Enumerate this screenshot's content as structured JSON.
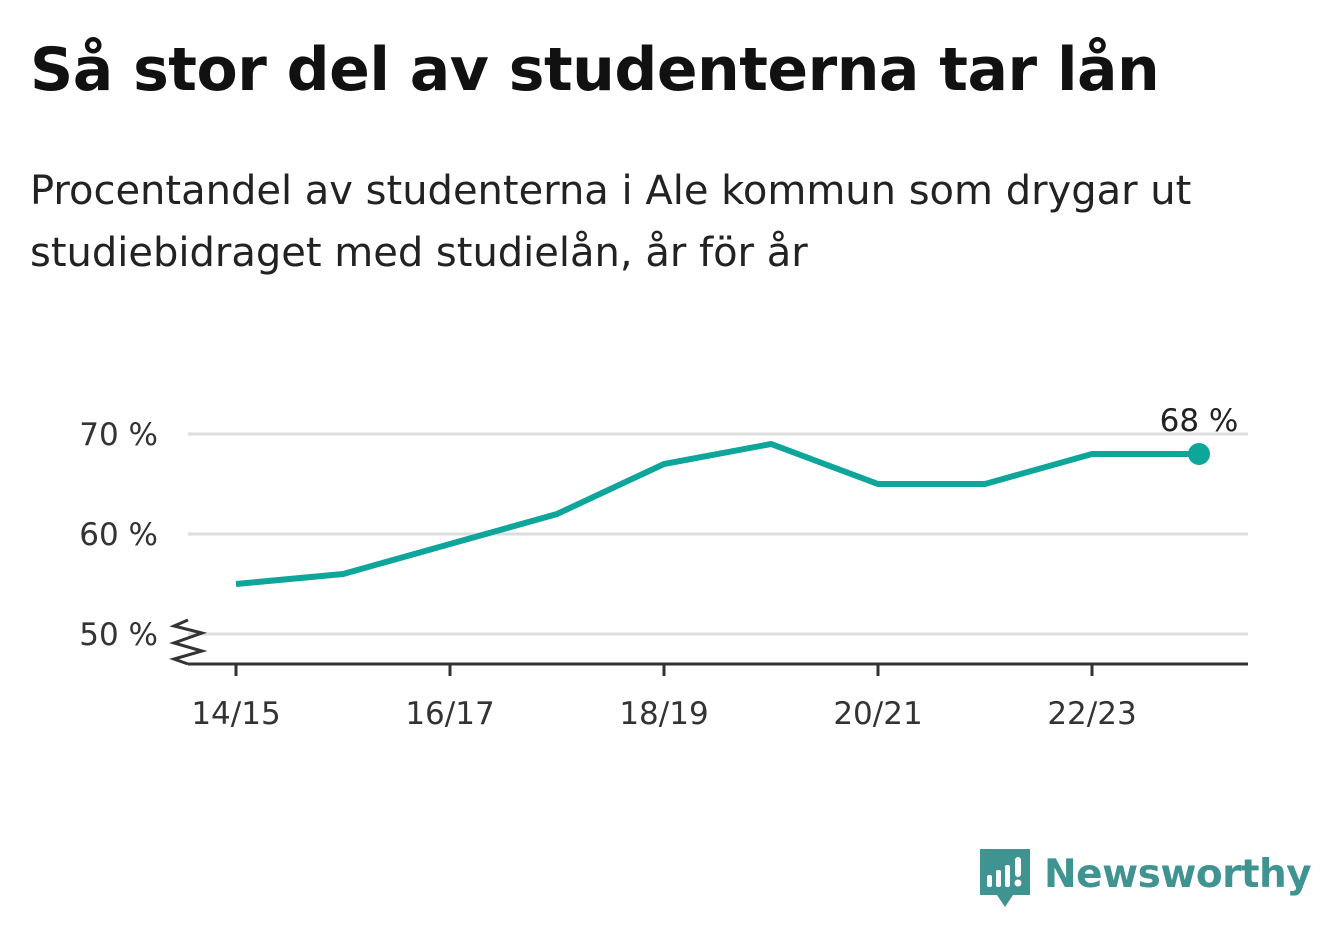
{
  "title": "Så stor del av studenterna tar lån",
  "subtitle": "Procentandel av studenterna i Ale kommun som drygar ut studiebidraget med studielån, år för år",
  "brand": {
    "name": "Newsworthy",
    "icon": "newsworthy-logo-icon",
    "color": "#3f9391"
  },
  "chart_data": {
    "type": "line",
    "x": [
      "14/15",
      "15/16",
      "16/17",
      "17/18",
      "18/19",
      "19/20",
      "20/21",
      "21/22",
      "22/23",
      "23/24"
    ],
    "series": [
      {
        "values": [
          55,
          56,
          59,
          62,
          67,
          69,
          65,
          65,
          68,
          68
        ],
        "color": "#0ea59a"
      }
    ],
    "x_tick_labels": [
      "14/15",
      "16/17",
      "18/19",
      "20/21",
      "22/23"
    ],
    "y_ticks": [
      50,
      60,
      70
    ],
    "y_tick_labels": [
      "50 %",
      "60 %",
      "70 %"
    ],
    "ylim": [
      47,
      72
    ],
    "y_axis_break": true,
    "grid": true,
    "end_label": "68 %",
    "end_marker": true
  }
}
